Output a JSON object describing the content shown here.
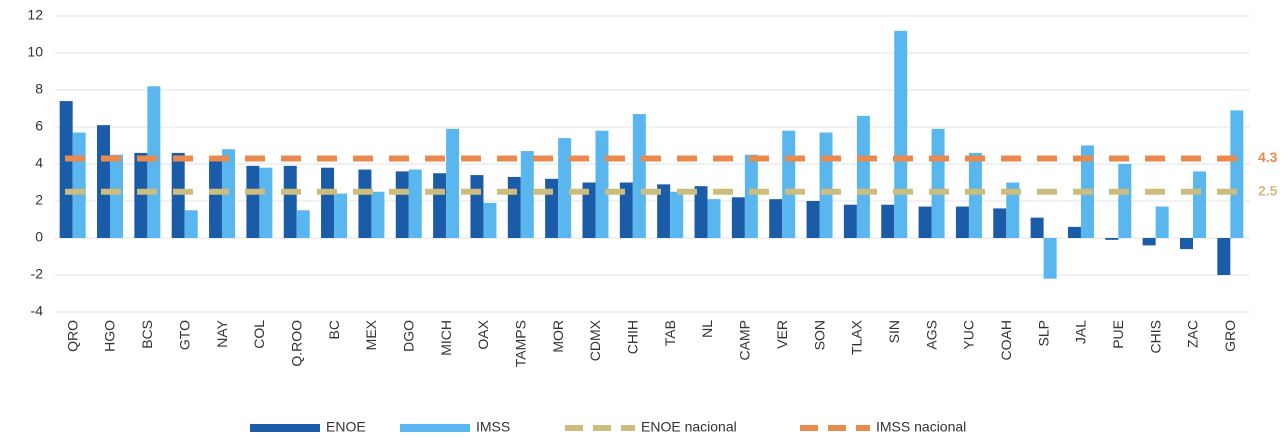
{
  "chart_data": {
    "type": "bar",
    "categories": [
      "QRO",
      "HGO",
      "BCS",
      "GTO",
      "NAY",
      "COL",
      "Q.ROO",
      "BC",
      "MEX",
      "DGO",
      "MICH",
      "OAX",
      "TAMPS",
      "MOR",
      "CDMX",
      "CHIH",
      "TAB",
      "NL",
      "CAMP",
      "VER",
      "SON",
      "TLAX",
      "SIN",
      "AGS",
      "YUC",
      "COAH",
      "SLP",
      "JAL",
      "PUE",
      "CHIS",
      "ZAC",
      "GRO"
    ],
    "series": [
      {
        "name": "ENOE",
        "color": "#1b5ca8",
        "values": [
          7.4,
          6.1,
          4.6,
          4.6,
          4.4,
          3.9,
          3.9,
          3.8,
          3.7,
          3.6,
          3.5,
          3.4,
          3.3,
          3.2,
          3.0,
          3.0,
          2.9,
          2.8,
          2.2,
          2.1,
          2.0,
          1.8,
          1.8,
          1.7,
          1.7,
          1.6,
          1.1,
          0.6,
          -0.1,
          -0.4,
          -0.6,
          -2.0
        ]
      },
      {
        "name": "IMSS",
        "color": "#5ab6ee",
        "values": [
          5.7,
          4.5,
          8.2,
          1.5,
          4.8,
          3.8,
          1.5,
          2.4,
          2.5,
          3.7,
          5.9,
          1.9,
          4.7,
          5.4,
          5.8,
          6.7,
          2.5,
          2.1,
          4.5,
          5.8,
          5.7,
          6.6,
          11.2,
          5.9,
          4.6,
          3.0,
          -2.2,
          5.0,
          4.0,
          1.7,
          3.6,
          6.9
        ]
      }
    ],
    "reference_lines": [
      {
        "name": "ENOE nacional",
        "color": "#cdbd7d",
        "value": 2.5
      },
      {
        "name": "IMSS nacional",
        "color": "#e98a4c",
        "value": 4.3
      }
    ],
    "ylim": [
      -4,
      12
    ],
    "yticks": [
      -4,
      -2,
      0,
      2,
      4,
      6,
      8,
      10,
      12
    ],
    "grid": true
  }
}
